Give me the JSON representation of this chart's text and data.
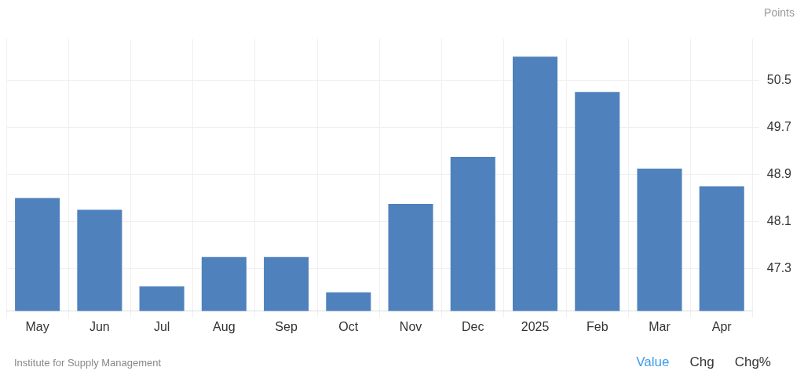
{
  "chart_data": {
    "type": "bar",
    "ylabel": "Points",
    "categories": [
      "May",
      "Jun",
      "Jul",
      "Aug",
      "Sep",
      "Oct",
      "Nov",
      "Dec",
      "2025",
      "Feb",
      "Mar",
      "Apr"
    ],
    "values": [
      48.5,
      48.3,
      47.0,
      47.5,
      47.5,
      46.9,
      48.4,
      49.2,
      50.9,
      50.3,
      49.0,
      48.7
    ],
    "color": "#4f81bd",
    "ylim": [
      46.58,
      51.2
    ],
    "yticks": [
      47.3,
      48.1,
      48.9,
      49.7,
      50.5
    ],
    "grid": true,
    "legend": false,
    "annotations": [
      "Institute for Supply Management",
      "Value",
      "Chg",
      "Chg%"
    ]
  }
}
